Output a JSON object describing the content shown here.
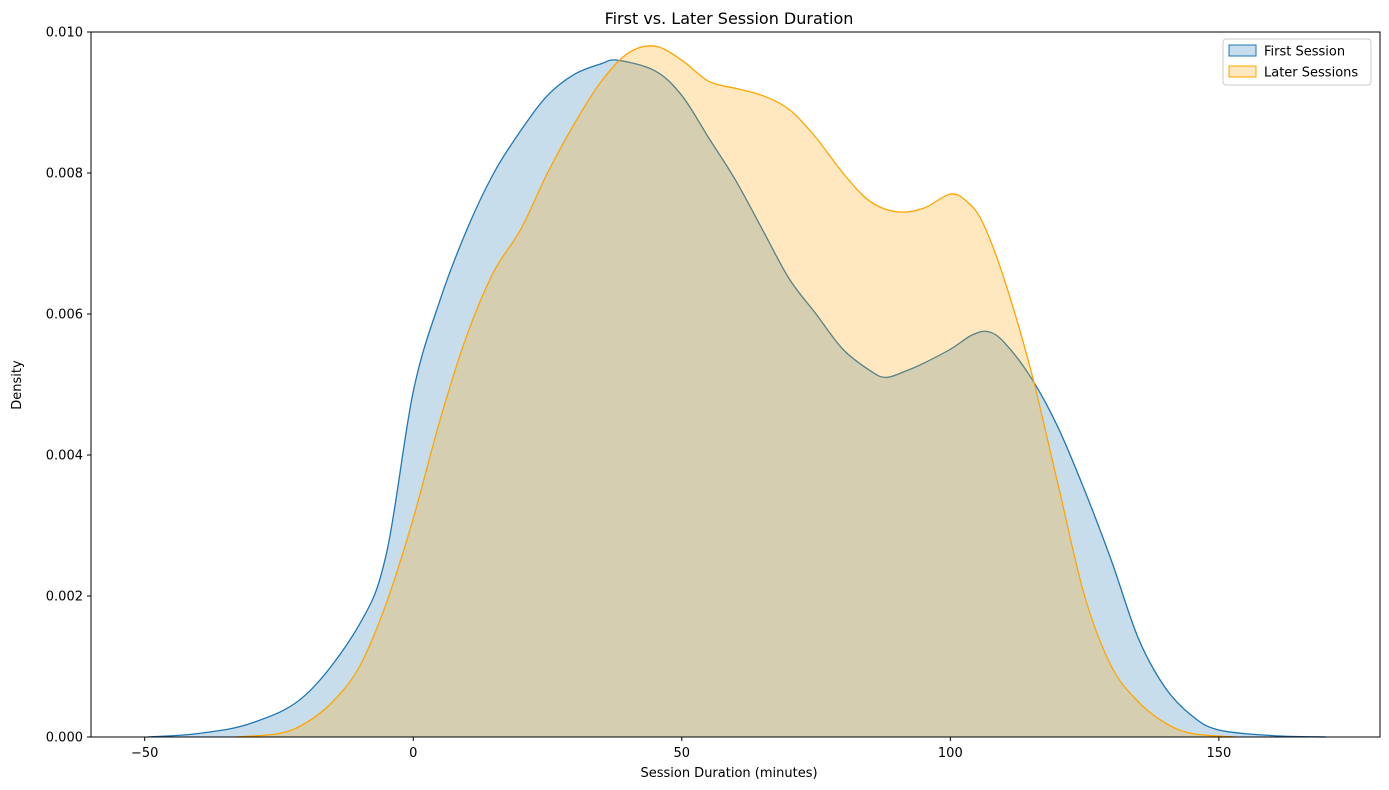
{
  "chart_data": {
    "type": "area",
    "title": "First vs. Later Session Duration",
    "xlabel": "Session Duration (minutes)",
    "ylabel": "Density",
    "xlim": [
      -60,
      180
    ],
    "ylim": [
      0,
      0.01
    ],
    "xticks": [
      -50,
      0,
      50,
      100,
      150
    ],
    "xtick_labels": [
      "−50",
      "0",
      "50",
      "100",
      "150"
    ],
    "yticks": [
      0,
      0.002,
      0.004,
      0.006,
      0.008,
      0.01
    ],
    "ytick_labels": [
      "0.000",
      "0.002",
      "0.004",
      "0.006",
      "0.008",
      "0.010"
    ],
    "grid": false,
    "legend_position": "top-right",
    "series": [
      {
        "name": "First Session",
        "color": "#1f77b4",
        "fill_opacity": 0.25,
        "points": [
          [
            -49.5,
            0.0
          ],
          [
            -40,
            5e-05
          ],
          [
            -30,
            0.0002
          ],
          [
            -20,
            0.0006
          ],
          [
            -10,
            0.0016
          ],
          [
            -5,
            0.0026
          ],
          [
            0,
            0.0049
          ],
          [
            5,
            0.0062
          ],
          [
            10,
            0.0072
          ],
          [
            15,
            0.008
          ],
          [
            20,
            0.0086
          ],
          [
            25,
            0.0091
          ],
          [
            30,
            0.0094
          ],
          [
            35,
            0.00955
          ],
          [
            38,
            0.0096
          ],
          [
            45,
            0.00945
          ],
          [
            50,
            0.0091
          ],
          [
            55,
            0.0085
          ],
          [
            60,
            0.0079
          ],
          [
            65,
            0.0072
          ],
          [
            70,
            0.0065
          ],
          [
            75,
            0.006
          ],
          [
            80,
            0.0055
          ],
          [
            85,
            0.0052
          ],
          [
            88,
            0.0051
          ],
          [
            92,
            0.0052
          ],
          [
            95,
            0.0053
          ],
          [
            100,
            0.0055
          ],
          [
            104,
            0.0057
          ],
          [
            107,
            0.00575
          ],
          [
            110,
            0.0056
          ],
          [
            115,
            0.0051
          ],
          [
            120,
            0.0044
          ],
          [
            125,
            0.0035
          ],
          [
            130,
            0.0025
          ],
          [
            135,
            0.0014
          ],
          [
            140,
            0.0007
          ],
          [
            145,
            0.0003
          ],
          [
            150,
            0.0001
          ],
          [
            160,
            2e-05
          ],
          [
            170,
            0.0
          ]
        ]
      },
      {
        "name": "Later Sessions",
        "color": "#ffa500",
        "fill_opacity": 0.25,
        "points": [
          [
            -33,
            0.0
          ],
          [
            -25,
            5e-05
          ],
          [
            -20,
            0.0002
          ],
          [
            -15,
            0.0005
          ],
          [
            -10,
            0.001
          ],
          [
            -5,
            0.0019
          ],
          [
            0,
            0.0031
          ],
          [
            5,
            0.0045
          ],
          [
            10,
            0.0057
          ],
          [
            15,
            0.0066
          ],
          [
            20,
            0.0072
          ],
          [
            25,
            0.008
          ],
          [
            30,
            0.0087
          ],
          [
            35,
            0.0093
          ],
          [
            40,
            0.0097
          ],
          [
            45,
            0.0098
          ],
          [
            50,
            0.0096
          ],
          [
            55,
            0.0093
          ],
          [
            60,
            0.0092
          ],
          [
            65,
            0.0091
          ],
          [
            70,
            0.0089
          ],
          [
            75,
            0.0085
          ],
          [
            80,
            0.008
          ],
          [
            85,
            0.0076
          ],
          [
            90,
            0.00745
          ],
          [
            95,
            0.0075
          ],
          [
            100,
            0.0077
          ],
          [
            103,
            0.0076
          ],
          [
            106,
            0.0073
          ],
          [
            110,
            0.0065
          ],
          [
            115,
            0.0052
          ],
          [
            120,
            0.0036
          ],
          [
            125,
            0.002
          ],
          [
            130,
            0.001
          ],
          [
            135,
            0.0005
          ],
          [
            140,
            0.0002
          ],
          [
            145,
            5e-05
          ],
          [
            153,
            0.0
          ]
        ]
      }
    ]
  }
}
